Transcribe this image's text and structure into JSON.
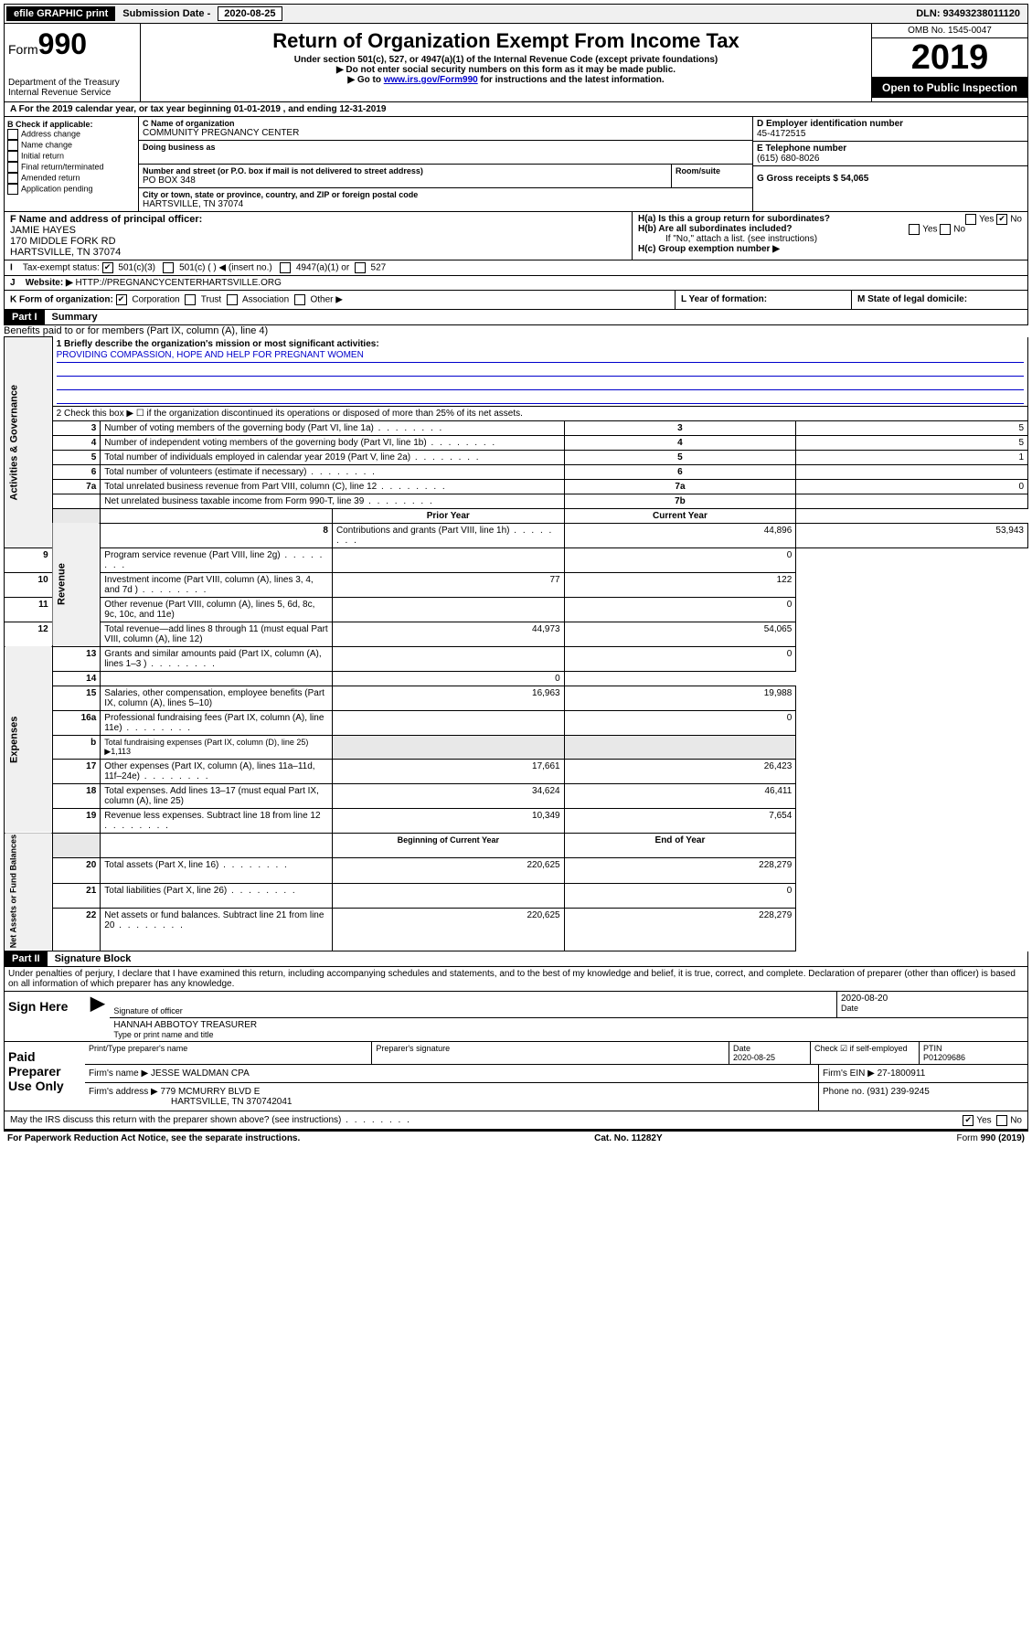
{
  "top_bar": {
    "efile": "efile GRAPHIC print",
    "sub_label": "Submission Date - ",
    "sub_date": "2020-08-25",
    "dln": "DLN: 93493238011120"
  },
  "header": {
    "form_prefix": "Form",
    "form_number": "990",
    "dept": "Department of the Treasury",
    "irs": "Internal Revenue Service",
    "title": "Return of Organization Exempt From Income Tax",
    "sub1": "Under section 501(c), 527, or 4947(a)(1) of the Internal Revenue Code (except private foundations)",
    "sub2": "▶ Do not enter social security numbers on this form as it may be made public.",
    "sub3a": "▶ Go to ",
    "sub3_link": "www.irs.gov/Form990",
    "sub3b": " for instructions and the latest information.",
    "omb": "OMB No. 1545-0047",
    "year": "2019",
    "open": "Open to Public Inspection"
  },
  "line_a": "For the 2019 calendar year, or tax year beginning 01-01-2019    , and ending 12-31-2019",
  "block_b": {
    "label": "B Check if applicable:",
    "opts": [
      "Address change",
      "Name change",
      "Initial return",
      "Final return/terminated",
      "Amended return",
      "Application pending"
    ]
  },
  "block_c": {
    "name_label": "C Name of organization",
    "name": "COMMUNITY PREGNANCY CENTER",
    "dba_label": "Doing business as",
    "addr_label": "Number and street (or P.O. box if mail is not delivered to street address)",
    "room_label": "Room/suite",
    "addr": "PO BOX 348",
    "city_label": "City or town, state or province, country, and ZIP or foreign postal code",
    "city": "HARTSVILLE, TN  37074"
  },
  "block_d": {
    "ein_label": "D Employer identification number",
    "ein": "45-4172515",
    "phone_label": "E Telephone number",
    "phone": "(615) 680-8026",
    "gross_label": "G Gross receipts $ 54,065"
  },
  "block_f": {
    "label": "F  Name and address of principal officer:",
    "name": "JAMIE HAYES",
    "addr1": "170 MIDDLE FORK RD",
    "addr2": "HARTSVILLE, TN  37074"
  },
  "block_h": {
    "ha": "H(a)  Is this a group return for subordinates?",
    "hb": "H(b)  Are all subordinates included?",
    "hb_note": "If \"No,\" attach a list. (see instructions)",
    "hc": "H(c)  Group exemption number ▶",
    "yes": "Yes",
    "no": "No"
  },
  "line_i": {
    "label": "Tax-exempt status:",
    "opts": [
      "501(c)(3)",
      "501(c) (  ) ◀ (insert no.)",
      "4947(a)(1) or",
      "527"
    ]
  },
  "line_j": {
    "label": "Website: ▶",
    "url": "HTTP://PREGNANCYCENTERHARTSVILLE.ORG"
  },
  "line_k": {
    "label": "K Form of organization:",
    "opts": [
      "Corporation",
      "Trust",
      "Association",
      "Other ▶"
    ],
    "l_label": "L Year of formation:",
    "m_label": "M State of legal domicile:"
  },
  "part1": {
    "header": "Part I",
    "title": "Summary",
    "line1_label": "1  Briefly describe the organization's mission or most significant activities:",
    "mission": "PROVIDING COMPASSION, HOPE AND HELP FOR PREGNANT WOMEN",
    "line2": "2   Check this box ▶ ☐  if the organization discontinued its operations or disposed of more than 25% of its net assets.",
    "lines_top": [
      {
        "n": "3",
        "t": "Number of voting members of the governing body (Part VI, line 1a)",
        "b": "3",
        "v": "5"
      },
      {
        "n": "4",
        "t": "Number of independent voting members of the governing body (Part VI, line 1b)",
        "b": "4",
        "v": "5"
      },
      {
        "n": "5",
        "t": "Total number of individuals employed in calendar year 2019 (Part V, line 2a)",
        "b": "5",
        "v": "1"
      },
      {
        "n": "6",
        "t": "Total number of volunteers (estimate if necessary)",
        "b": "6",
        "v": ""
      },
      {
        "n": "7a",
        "t": "Total unrelated business revenue from Part VIII, column (C), line 12",
        "b": "7a",
        "v": "0"
      },
      {
        "n": "",
        "t": "Net unrelated business taxable income from Form 990-T, line 39",
        "b": "7b",
        "v": ""
      }
    ],
    "col_prior": "Prior Year",
    "col_current": "Current Year",
    "revenue": [
      {
        "n": "8",
        "t": "Contributions and grants (Part VIII, line 1h)",
        "p": "44,896",
        "c": "53,943"
      },
      {
        "n": "9",
        "t": "Program service revenue (Part VIII, line 2g)",
        "p": "",
        "c": "0"
      },
      {
        "n": "10",
        "t": "Investment income (Part VIII, column (A), lines 3, 4, and 7d )",
        "p": "77",
        "c": "122"
      },
      {
        "n": "11",
        "t": "Other revenue (Part VIII, column (A), lines 5, 6d, 8c, 9c, 10c, and 11e)",
        "p": "",
        "c": "0"
      },
      {
        "n": "12",
        "t": "Total revenue—add lines 8 through 11 (must equal Part VIII, column (A), line 12)",
        "p": "44,973",
        "c": "54,065"
      }
    ],
    "expenses": [
      {
        "n": "13",
        "t": "Grants and similar amounts paid (Part IX, column (A), lines 1–3 )",
        "p": "",
        "c": "0"
      },
      {
        "n": "14",
        "t": "Benefits paid to or for members (Part IX, column (A), line 4)",
        "p": "",
        "c": "0"
      },
      {
        "n": "15",
        "t": "Salaries, other compensation, employee benefits (Part IX, column (A), lines 5–10)",
        "p": "16,963",
        "c": "19,988"
      },
      {
        "n": "16a",
        "t": "Professional fundraising fees (Part IX, column (A), line 11e)",
        "p": "",
        "c": "0"
      },
      {
        "n": "b",
        "t": "Total fundraising expenses (Part IX, column (D), line 25) ▶1,113",
        "p": "GRAY",
        "c": "GRAY"
      },
      {
        "n": "17",
        "t": "Other expenses (Part IX, column (A), lines 11a–11d, 11f–24e)",
        "p": "17,661",
        "c": "26,423"
      },
      {
        "n": "18",
        "t": "Total expenses. Add lines 13–17 (must equal Part IX, column (A), line 25)",
        "p": "34,624",
        "c": "46,411"
      },
      {
        "n": "19",
        "t": "Revenue less expenses. Subtract line 18 from line 12",
        "p": "10,349",
        "c": "7,654"
      }
    ],
    "col_begin": "Beginning of Current Year",
    "col_end": "End of Year",
    "nafb": [
      {
        "n": "20",
        "t": "Total assets (Part X, line 16)",
        "p": "220,625",
        "c": "228,279"
      },
      {
        "n": "21",
        "t": "Total liabilities (Part X, line 26)",
        "p": "",
        "c": "0"
      },
      {
        "n": "22",
        "t": "Net assets or fund balances. Subtract line 21 from line 20",
        "p": "220,625",
        "c": "228,279"
      }
    ],
    "vert_gov": "Activities & Governance",
    "vert_rev": "Revenue",
    "vert_exp": "Expenses",
    "vert_nafb": "Net Assets or Fund Balances"
  },
  "part2": {
    "header": "Part II",
    "title": "Signature Block",
    "perjury": "Under penalties of perjury, I declare that I have examined this return, including accompanying schedules and statements, and to the best of my knowledge and belief, it is true, correct, and complete. Declaration of preparer (other than officer) is based on all information of which preparer has any knowledge.",
    "sign_here": "Sign Here",
    "sig_officer": "Signature of officer",
    "sig_date": "2020-08-20",
    "date_label": "Date",
    "officer_name": "HANNAH ABBOTOY TREASURER",
    "type_name": "Type or print name and title",
    "paid": "Paid Preparer Use Only",
    "prep_name_label": "Print/Type preparer's name",
    "prep_sig_label": "Preparer's signature",
    "prep_date_label": "Date",
    "prep_date": "2020-08-25",
    "check_self": "Check ☑ if self-employed",
    "ptin_label": "PTIN",
    "ptin": "P01209686",
    "firm_name_label": "Firm's name    ▶",
    "firm_name": "JESSE WALDMAN CPA",
    "firm_ein_label": "Firm's EIN ▶",
    "firm_ein": "27-1800911",
    "firm_addr_label": "Firm's address ▶",
    "firm_addr1": "779 MCMURRY BLVD E",
    "firm_addr2": "HARTSVILLE, TN  370742041",
    "firm_phone_label": "Phone no.",
    "firm_phone": "(931) 239-9245",
    "discuss": "May the IRS discuss this return with the preparer shown above? (see instructions)",
    "yes": "Yes",
    "no": "No"
  },
  "footer": {
    "left": "For Paperwork Reduction Act Notice, see the separate instructions.",
    "mid": "Cat. No. 11282Y",
    "right": "Form 990 (2019)"
  }
}
